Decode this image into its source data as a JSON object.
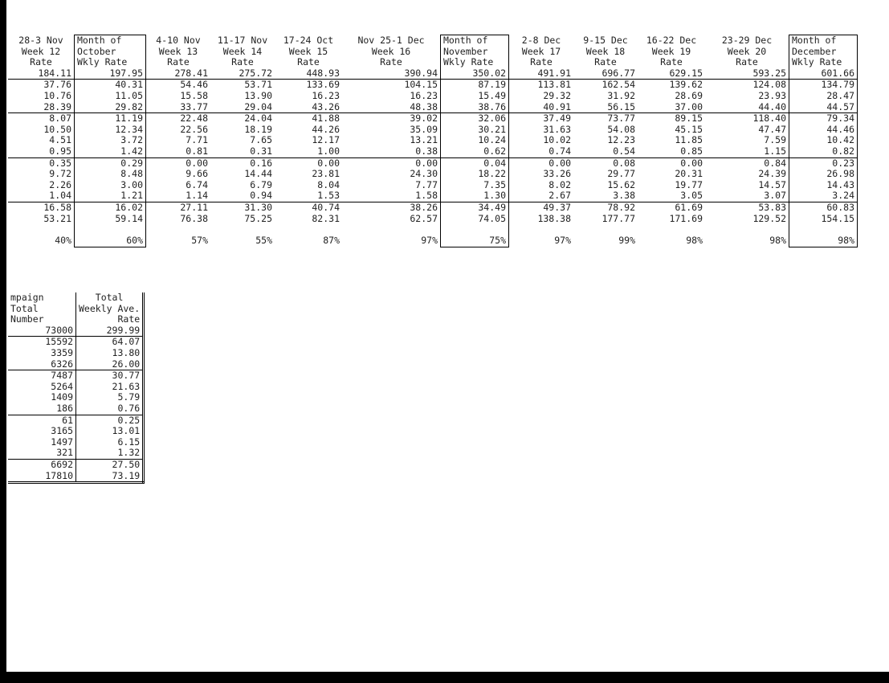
{
  "table1": {
    "headers": [
      [
        "28-3 Nov",
        "Week 12",
        "Rate"
      ],
      [
        "Month of",
        "October",
        "Wkly Rate"
      ],
      [
        "4-10 Nov",
        "Week 13",
        "Rate"
      ],
      [
        "11-17 Nov",
        "Week 14",
        "Rate"
      ],
      [
        "17-24 Oct",
        "Week 15",
        "Rate"
      ],
      [
        "Nov 25-1 Dec",
        "Week 16",
        "Rate"
      ],
      [
        "Month of",
        "November",
        "Wkly Rate"
      ],
      [
        "2-8 Dec",
        "Week 17",
        "Rate"
      ],
      [
        "9-15 Dec",
        "Week 18",
        "Rate"
      ],
      [
        "16-22 Dec",
        "Week 19",
        "Rate"
      ],
      [
        "23-29 Dec",
        "Week 20",
        "Rate"
      ],
      [
        "Month of",
        "December",
        "Wkly Rate"
      ]
    ],
    "boxed_columns": [
      1,
      6,
      11
    ],
    "rows": [
      [
        "184.11",
        "197.95",
        "278.41",
        "275.72",
        "448.93",
        "390.94",
        "350.02",
        "491.91",
        "696.77",
        "629.15",
        "593.25",
        "601.66"
      ],
      [
        "37.76",
        "40.31",
        "54.46",
        "53.71",
        "133.69",
        "104.15",
        "87.19",
        "113.81",
        "162.54",
        "139.62",
        "124.08",
        "134.79"
      ],
      [
        "10.76",
        "11.05",
        "15.58",
        "13.90",
        "16.23",
        "16.23",
        "15.49",
        "29.32",
        "31.92",
        "28.69",
        "23.93",
        "28.47"
      ],
      [
        "28.39",
        "29.82",
        "33.77",
        "29.04",
        "43.26",
        "48.38",
        "38.76",
        "40.91",
        "56.15",
        "37.00",
        "44.40",
        "44.57"
      ],
      [
        "8.07",
        "11.19",
        "22.48",
        "24.04",
        "41.88",
        "39.02",
        "32.06",
        "37.49",
        "73.77",
        "89.15",
        "118.40",
        "79.34"
      ],
      [
        "10.50",
        "12.34",
        "22.56",
        "18.19",
        "44.26",
        "35.09",
        "30.21",
        "31.63",
        "54.08",
        "45.15",
        "47.47",
        "44.46"
      ],
      [
        "4.51",
        "3.72",
        "7.71",
        "7.65",
        "12.17",
        "13.21",
        "10.24",
        "10.02",
        "12.23",
        "11.85",
        "7.59",
        "10.42"
      ],
      [
        "0.95",
        "1.42",
        "0.81",
        "0.31",
        "1.00",
        "0.38",
        "0.62",
        "0.74",
        "0.54",
        "0.85",
        "1.15",
        "0.82"
      ],
      [
        "0.35",
        "0.29",
        "0.00",
        "0.16",
        "0.00",
        "0.00",
        "0.04",
        "0.00",
        "0.08",
        "0.00",
        "0.84",
        "0.23"
      ],
      [
        "9.72",
        "8.48",
        "9.66",
        "14.44",
        "23.81",
        "24.30",
        "18.22",
        "33.26",
        "29.77",
        "20.31",
        "24.39",
        "26.98"
      ],
      [
        "2.26",
        "3.00",
        "6.74",
        "6.79",
        "8.04",
        "7.77",
        "7.35",
        "8.02",
        "15.62",
        "19.77",
        "14.57",
        "14.43"
      ],
      [
        "1.04",
        "1.21",
        "1.14",
        "0.94",
        "1.53",
        "1.58",
        "1.30",
        "2.67",
        "3.38",
        "3.05",
        "3.07",
        "3.24"
      ],
      [
        "16.58",
        "16.02",
        "27.11",
        "31.30",
        "40.74",
        "38.26",
        "34.49",
        "49.37",
        "78.92",
        "61.69",
        "53.83",
        "60.83"
      ],
      [
        "53.21",
        "59.14",
        "76.38",
        "75.25",
        "82.31",
        "62.57",
        "74.05",
        "138.38",
        "177.77",
        "171.69",
        "129.52",
        "154.15"
      ],
      [],
      [
        "40%",
        "60%",
        "57%",
        "55%",
        "87%",
        "97%",
        "75%",
        "97%",
        "99%",
        "98%",
        "98%",
        "98%"
      ]
    ],
    "separators_before": [
      1,
      4,
      8,
      12
    ]
  },
  "table2": {
    "headers": [
      [
        "mpaign",
        "Total",
        "Number"
      ],
      [
        "Total",
        "Weekly Ave.",
        "Rate"
      ]
    ],
    "rows": [
      [
        "73000",
        "299.99"
      ],
      [
        "15592",
        "64.07"
      ],
      [
        "3359",
        "13.80"
      ],
      [
        "6326",
        "26.00"
      ],
      [
        "7487",
        "30.77"
      ],
      [
        "5264",
        "21.63"
      ],
      [
        "1409",
        "5.79"
      ],
      [
        "186",
        "0.76"
      ],
      [
        "61",
        "0.25"
      ],
      [
        "3165",
        "13.01"
      ],
      [
        "1497",
        "6.15"
      ],
      [
        "321",
        "1.32"
      ],
      [
        "6692",
        "27.50"
      ],
      [
        "17810",
        "73.19"
      ]
    ],
    "separators_before": [
      1,
      4,
      8,
      12
    ]
  }
}
